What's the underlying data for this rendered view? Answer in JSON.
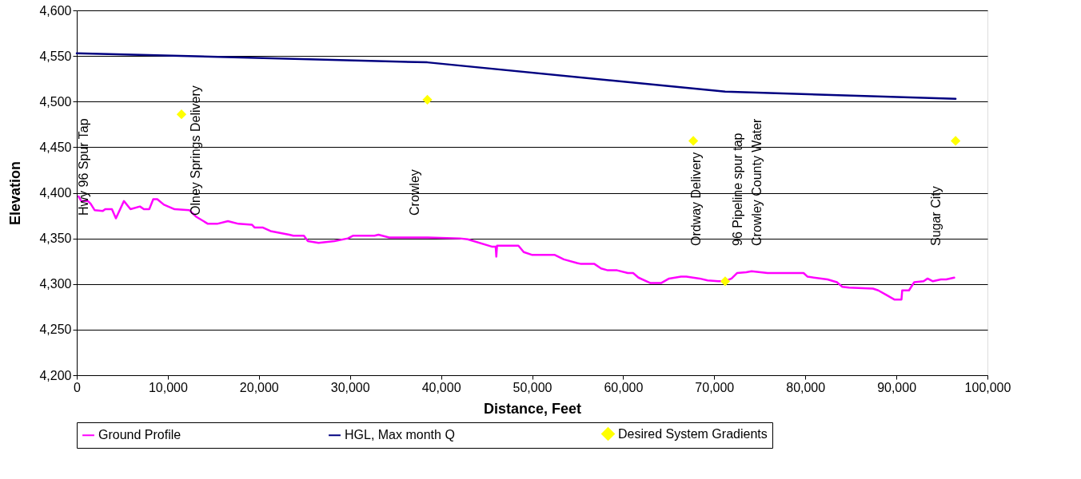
{
  "chart_data": {
    "type": "line",
    "xlabel": "Distance, Feet",
    "ylabel": "Elevation",
    "xlim": [
      0,
      100000
    ],
    "xticks": [
      0,
      {
        "value": 10000,
        "label": "10,000"
      },
      {
        "value": 20000,
        "label": "20,000"
      },
      {
        "value": 30000,
        "label": "30,000"
      },
      {
        "value": 40000,
        "label": "40,000"
      },
      {
        "value": 50000,
        "label": "50,000"
      },
      {
        "value": 60000,
        "label": "60,000"
      },
      {
        "value": 70000,
        "label": "70,000"
      },
      {
        "value": 80000,
        "label": "80,000"
      },
      {
        "value": 90000,
        "label": "90,000"
      },
      {
        "value": 100000,
        "label": "100,000"
      }
    ],
    "ylim": [
      4200,
      4600
    ],
    "yticks": [
      {
        "value": 4200,
        "label": "4,200"
      },
      {
        "value": 4250,
        "label": "4,250"
      },
      {
        "value": 4300,
        "label": "4,300"
      },
      {
        "value": 4350,
        "label": "4,350"
      },
      {
        "value": 4400,
        "label": "4,400"
      },
      {
        "value": 4450,
        "label": "4,450"
      },
      {
        "value": 4500,
        "label": "4,500"
      },
      {
        "value": 4550,
        "label": "4,550"
      },
      {
        "value": 4600,
        "label": "4,600"
      }
    ],
    "grid": "y",
    "legend": "bottom",
    "series": [
      {
        "name": "Ground Profile",
        "color": "#ff00ff",
        "x": [
          205,
          500,
          1230,
          1520,
          1960,
          2840,
          3130,
          3860,
          4300,
          5180,
          5900,
          6940,
          7370,
          7960,
          8400,
          8840,
          9570,
          10740,
          12350,
          13080,
          14400,
          15420,
          16600,
          17760,
          19230,
          19520,
          20400,
          21280,
          23330,
          23780,
          24940,
          25380,
          26550,
          28300,
          29770,
          30360,
          32700,
          33130,
          34300,
          38540,
          42060,
          42930,
          45570,
          46000,
          46070,
          46150,
          48500,
          49080,
          49960,
          52450,
          53480,
          54940,
          55380,
          56840,
          57570,
          58310,
          59330,
          60510,
          61090,
          61680,
          63000,
          64160,
          65040,
          66350,
          66940,
          68400,
          69270,
          70440,
          71170,
          71900,
          72500,
          73520,
          74100,
          75860,
          79810,
          80250,
          82440,
          83470,
          84060,
          84790,
          87420,
          88010,
          88890,
          89770,
          90560,
          90640,
          91380,
          91960,
          92990,
          93430,
          94010,
          94890,
          95470,
          96350
        ],
        "values": [
          4396,
          4391,
          4391,
          4388,
          4381,
          4380,
          4382,
          4382,
          4372,
          4391,
          4382,
          4385,
          4382,
          4382,
          4393,
          4393,
          4387,
          4382,
          4381,
          4374,
          4366,
          4366,
          4369,
          4366,
          4365,
          4362,
          4362,
          4358,
          4354,
          4353,
          4353,
          4347,
          4345,
          4347,
          4350,
          4353,
          4353,
          4354,
          4351,
          4351,
          4350,
          4349,
          4341,
          4341,
          4330,
          4342,
          4342,
          4335,
          4332,
          4332,
          4327,
          4323,
          4322,
          4322,
          4317,
          4315,
          4315,
          4312,
          4312,
          4307,
          4301,
          4301,
          4306,
          4308,
          4308,
          4306,
          4304,
          4303,
          4303,
          4306,
          4312,
          4313,
          4314,
          4312,
          4312,
          4308,
          4305,
          4302,
          4297,
          4296,
          4295,
          4293,
          4288,
          4283,
          4283,
          4293,
          4293,
          4302,
          4303,
          4306,
          4303,
          4305,
          4305,
          4307
        ]
      },
      {
        "name": "HGL, Max month Q",
        "color": "#000080",
        "x": [
          0,
          38500,
          71200,
          96500
        ],
        "values": [
          4553,
          4543,
          4511,
          4503
        ]
      },
      {
        "name": "Desired System Gradients",
        "type": "scatter",
        "marker": "diamond",
        "color": "#ffff00",
        "x": [
          11500,
          38500,
          67700,
          71200,
          96500
        ],
        "values": [
          4486,
          4502,
          4457,
          4303,
          4457
        ]
      }
    ],
    "annotations": [
      "Hwy 96 Spur Tap",
      "Olney Springs Delivery",
      "Crowley",
      "Ordway Delivery",
      "96 Pipeline spur tap",
      "Crowley County Water",
      "Sugar City"
    ]
  }
}
